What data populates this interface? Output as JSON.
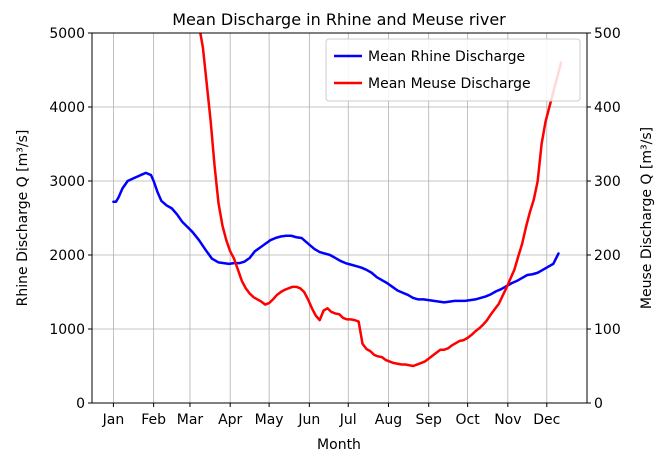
{
  "chart_data": {
    "type": "line",
    "title": "Mean Discharge in Rhine and Meuse river",
    "xlabel": "Month",
    "ylabel_left": "Rhine Discharge Q [m³/s]",
    "ylabel_right": "Meuse Discharge Q [m³/s]",
    "x_tick_labels": [
      "Jan",
      "Feb",
      "Mar",
      "Apr",
      "May",
      "Jun",
      "Jul",
      "Aug",
      "Sep",
      "Oct",
      "Nov",
      "Dec"
    ],
    "x_tick_days": [
      1,
      32,
      60,
      91,
      121,
      152,
      182,
      213,
      244,
      274,
      305,
      335
    ],
    "xlim": [
      -15.5,
      366
    ],
    "ylim_left": [
      0,
      5000
    ],
    "ylim_right": [
      0,
      500
    ],
    "yticks_left": [
      0,
      1000,
      2000,
      3000,
      4000,
      5000
    ],
    "yticks_right": [
      0,
      100,
      200,
      300,
      400,
      500
    ],
    "grid": true,
    "legend_position": "upper-right",
    "series": [
      {
        "name": "Mean Rhine Discharge",
        "axis": "left",
        "color": "#0000ff",
        "x": [
          1,
          3,
          5,
          8,
          12,
          17,
          22,
          26,
          30,
          32,
          35,
          38,
          42,
          46,
          50,
          54,
          58,
          62,
          67,
          72,
          77,
          82,
          86,
          90,
          94,
          98,
          102,
          106,
          110,
          114,
          118,
          122,
          126,
          130,
          134,
          138,
          142,
          146,
          148,
          152,
          156,
          160,
          164,
          168,
          172,
          176,
          180,
          184,
          188,
          192,
          196,
          200,
          204,
          208,
          212,
          216,
          220,
          224,
          228,
          232,
          236,
          240,
          244,
          248,
          252,
          256,
          260,
          264,
          268,
          272,
          276,
          280,
          284,
          288,
          292,
          296,
          300,
          304,
          308,
          312,
          316,
          320,
          324,
          328,
          332,
          336,
          340,
          344
        ],
        "y": [
          2720,
          2720,
          2780,
          2900,
          3000,
          3040,
          3080,
          3110,
          3080,
          3000,
          2850,
          2730,
          2670,
          2630,
          2550,
          2450,
          2380,
          2310,
          2200,
          2070,
          1950,
          1900,
          1890,
          1880,
          1890,
          1890,
          1910,
          1960,
          2050,
          2100,
          2150,
          2200,
          2230,
          2250,
          2260,
          2260,
          2240,
          2230,
          2200,
          2140,
          2080,
          2040,
          2020,
          2000,
          1960,
          1920,
          1890,
          1870,
          1850,
          1830,
          1800,
          1760,
          1700,
          1660,
          1620,
          1570,
          1520,
          1490,
          1460,
          1420,
          1400,
          1400,
          1390,
          1380,
          1370,
          1360,
          1370,
          1380,
          1380,
          1380,
          1390,
          1400,
          1420,
          1440,
          1470,
          1510,
          1540,
          1580,
          1620,
          1650,
          1690,
          1730,
          1740,
          1760,
          1800,
          1840,
          1880,
          2020
        ]
      },
      {
        "name": "Mean Meuse Discharge",
        "axis": "right",
        "color": "#ff0000",
        "x": [
          68,
          70,
          73,
          76,
          79,
          82,
          85,
          88,
          91,
          94,
          97,
          100,
          103,
          106,
          109,
          112,
          115,
          118,
          121,
          124,
          127,
          130,
          133,
          136,
          139,
          142,
          145,
          148,
          151,
          154,
          157,
          160,
          163,
          166,
          169,
          172,
          175,
          178,
          181,
          184,
          187,
          190,
          193,
          196,
          199,
          202,
          205,
          208,
          211,
          214,
          217,
          220,
          223,
          226,
          229,
          232,
          235,
          238,
          241,
          244,
          247,
          250,
          253,
          256,
          259,
          262,
          265,
          268,
          271,
          274,
          277,
          280,
          283,
          286,
          289,
          292,
          295,
          298,
          301,
          304,
          307,
          310,
          313,
          316,
          319,
          322,
          325,
          328,
          331,
          334,
          337,
          340,
          343,
          346
        ],
        "y": [
          500,
          480,
          430,
          380,
          320,
          270,
          240,
          220,
          205,
          195,
          180,
          165,
          155,
          148,
          143,
          140,
          137,
          133,
          135,
          140,
          146,
          150,
          153,
          155,
          157,
          157,
          155,
          150,
          140,
          128,
          118,
          112,
          125,
          128,
          123,
          121,
          120,
          115,
          113,
          113,
          112,
          110,
          80,
          73,
          70,
          65,
          63,
          62,
          58,
          56,
          54,
          53,
          52,
          52,
          51,
          50,
          52,
          54,
          56,
          60,
          64,
          68,
          72,
          72,
          74,
          78,
          81,
          84,
          85,
          88,
          92,
          97,
          101,
          106,
          112,
          120,
          127,
          134,
          145,
          156,
          168,
          180,
          198,
          215,
          238,
          258,
          275,
          300,
          350,
          380,
          400,
          420,
          440,
          460
        ]
      }
    ]
  }
}
